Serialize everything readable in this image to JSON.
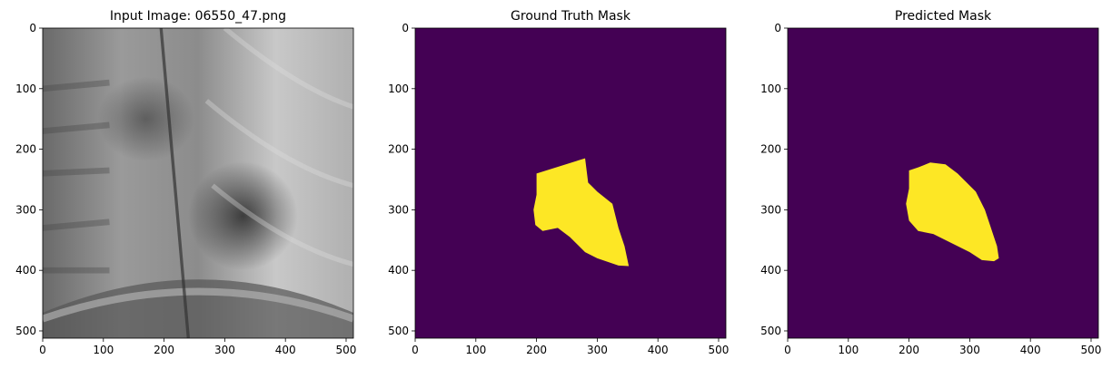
{
  "chart_data": [
    {
      "type": "image",
      "title": "Input Image: 06550_47.png",
      "xlim": [
        0,
        512
      ],
      "ylim": [
        512,
        0
      ],
      "xticks": [
        0,
        100,
        200,
        300,
        400,
        500
      ],
      "yticks": [
        0,
        100,
        200,
        300,
        400,
        500
      ]
    },
    {
      "type": "image",
      "title": "Ground Truth Mask",
      "xlim": [
        0,
        512
      ],
      "ylim": [
        512,
        0
      ],
      "xticks": [
        0,
        100,
        200,
        300,
        400,
        500
      ],
      "yticks": [
        0,
        100,
        200,
        300,
        400,
        500
      ]
    },
    {
      "type": "image",
      "title": "Predicted Mask",
      "xlim": [
        0,
        512
      ],
      "ylim": [
        512,
        0
      ],
      "xticks": [
        0,
        100,
        200,
        300,
        400,
        500
      ],
      "yticks": [
        0,
        100,
        200,
        300,
        400,
        500
      ]
    }
  ]
}
